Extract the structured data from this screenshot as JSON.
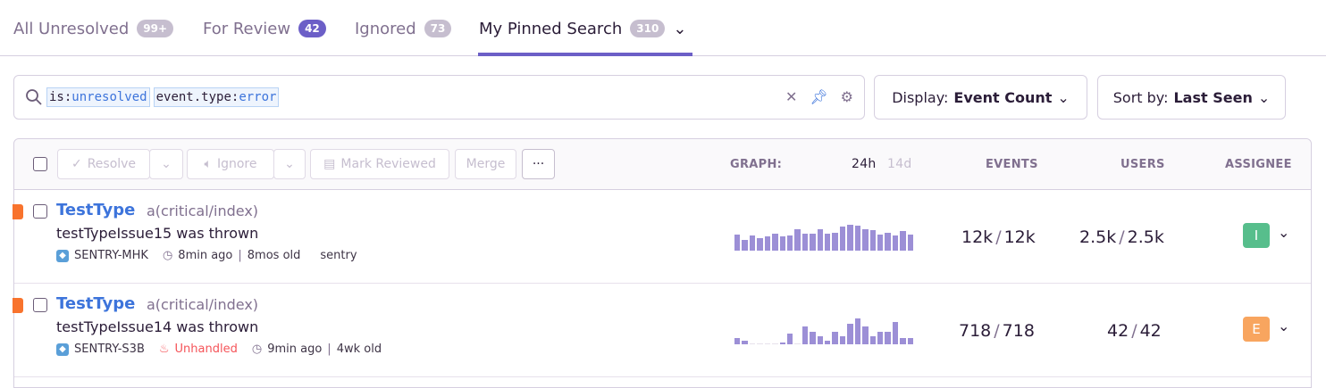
{
  "tabs": [
    {
      "label": "All Unresolved",
      "count": "99+"
    },
    {
      "label": "For Review",
      "count": "42"
    },
    {
      "label": "Ignored",
      "count": "73"
    },
    {
      "label": "My Pinned Search",
      "count": "310"
    }
  ],
  "search": {
    "tokens": [
      {
        "key": "is:",
        "value": "unresolved"
      },
      {
        "key": "event.type:",
        "value": "error"
      }
    ]
  },
  "display": {
    "label": "Display:",
    "value": "Event Count"
  },
  "sort": {
    "label": "Sort by:",
    "value": "Last Seen"
  },
  "toolbar": {
    "resolve": "Resolve",
    "ignore": "Ignore",
    "mark_reviewed": "Mark Reviewed",
    "merge": "Merge",
    "more": "···"
  },
  "columns": {
    "graph": "GRAPH:",
    "period_24h": "24h",
    "period_14d": "14d",
    "events": "EVENTS",
    "users": "USERS",
    "assignee": "ASSIGNEE"
  },
  "colors": {
    "accent": "#6c5fc7",
    "link": "#3d74db",
    "level_error": "#f8732d",
    "bar": "#9c8fd6"
  },
  "issues": [
    {
      "title": "TestType",
      "culprit": "a(critical/index)",
      "message": "testTypeIssue15 was thrown",
      "short_id": "SENTRY-MHK",
      "unhandled": "",
      "last_seen": "8min ago",
      "age": "8mos old",
      "extra": "sentry",
      "events": "12k",
      "events_total": "12k",
      "users": "2.5k",
      "users_total": "2.5k",
      "assignee": "I",
      "assignee_color": "#57be8c",
      "graph": [
        57,
        37,
        53,
        43,
        51,
        60,
        51,
        52,
        74,
        60,
        58,
        74,
        58,
        62,
        84,
        90,
        89,
        74,
        72,
        57,
        62,
        52,
        68,
        57
      ]
    },
    {
      "title": "TestType",
      "culprit": "a(critical/index)",
      "message": "testTypeIssue14 was thrown",
      "short_id": "SENTRY-S3B",
      "unhandled": "Unhandled",
      "last_seen": "9min ago",
      "age": "4wk old",
      "extra": "",
      "events": "718",
      "events_total": "718",
      "users": "42",
      "users_total": "42",
      "assignee": "E",
      "assignee_color": "#f8a55f",
      "graph": [
        22,
        14,
        0,
        0,
        0,
        0,
        7,
        36,
        0,
        64,
        43,
        29,
        14,
        43,
        29,
        71,
        92,
        64,
        29,
        43,
        43,
        79,
        22,
        22
      ]
    }
  ]
}
